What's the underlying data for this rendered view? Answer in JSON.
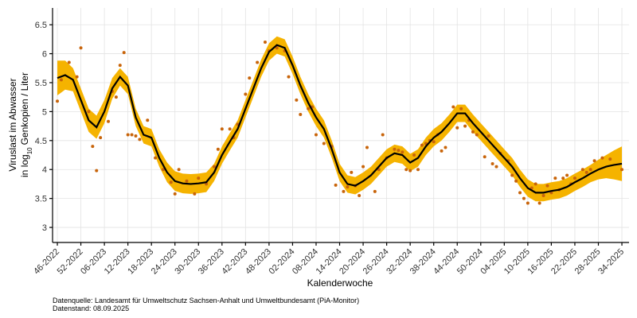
{
  "chart_data": {
    "y_label": {
      "line1": "Viruslast im Abwasser",
      "line2_prefix": "in  log",
      "line2_sub": "10",
      "line2_suffix": "Genkopien / Liter"
    },
    "x_label": "Kalenderwoche",
    "footer": [
      "Datenquelle: Landesamt für Umweltschutz Sachsen-Anhalt und Umweltbundesamt (PiA-Monitor)",
      "Datenstand: 08.09.2025"
    ],
    "xlim": [
      -1.22,
      145.82
    ],
    "ylim": [
      2.74,
      6.79
    ],
    "grid": true,
    "xticks": [
      {
        "value": 0,
        "label": "46-2022"
      },
      {
        "value": 6,
        "label": "52-2022"
      },
      {
        "value": 12,
        "label": "06-2023"
      },
      {
        "value": 18,
        "label": "12-2023"
      },
      {
        "value": 24,
        "label": "18-2023"
      },
      {
        "value": 30,
        "label": "24-2023"
      },
      {
        "value": 36,
        "label": "30-2023"
      },
      {
        "value": 42,
        "label": "36-2023"
      },
      {
        "value": 48,
        "label": "42-2023"
      },
      {
        "value": 54,
        "label": "48-2023"
      },
      {
        "value": 60,
        "label": "02-2024"
      },
      {
        "value": 66,
        "label": "08-2024"
      },
      {
        "value": 72,
        "label": "14-2024"
      },
      {
        "value": 78,
        "label": "20-2024"
      },
      {
        "value": 84,
        "label": "26-2024"
      },
      {
        "value": 90,
        "label": "32-2024"
      },
      {
        "value": 96,
        "label": "38-2024"
      },
      {
        "value": 102,
        "label": "44-2024"
      },
      {
        "value": 108,
        "label": "50-2024"
      },
      {
        "value": 114,
        "label": "04-2025"
      },
      {
        "value": 120,
        "label": "10-2025"
      },
      {
        "value": 126,
        "label": "16-2025"
      },
      {
        "value": 132,
        "label": "22-2025"
      },
      {
        "value": 138,
        "label": "28-2025"
      },
      {
        "value": 144,
        "label": "34-2025"
      }
    ],
    "yticks": [
      3,
      3.5,
      4,
      4.5,
      5,
      5.5,
      6,
      6.5
    ],
    "series": [
      {
        "type": "line",
        "color": "#000000",
        "band_color": "#f5b300",
        "x": [
          0,
          2,
          4,
          6,
          8,
          10,
          12,
          14,
          16,
          18,
          20,
          22,
          24,
          26,
          28,
          30,
          32,
          34,
          36,
          38,
          40,
          42,
          44,
          46,
          48,
          50,
          52,
          54,
          56,
          58,
          60,
          62,
          64,
          66,
          68,
          70,
          72,
          74,
          76,
          78,
          80,
          82,
          84,
          86,
          88,
          90,
          92,
          94,
          96,
          98,
          100,
          102,
          104,
          106,
          108,
          110,
          112,
          114,
          116,
          118,
          120,
          122,
          124,
          126,
          128,
          130,
          132,
          134,
          136,
          138,
          140,
          142,
          144
        ],
        "values": [
          5.58,
          5.63,
          5.55,
          5.2,
          4.85,
          4.73,
          5.0,
          5.4,
          5.6,
          5.45,
          4.9,
          4.6,
          4.55,
          4.2,
          3.95,
          3.8,
          3.76,
          3.75,
          3.76,
          3.78,
          3.95,
          4.25,
          4.48,
          4.7,
          5.05,
          5.4,
          5.75,
          6.03,
          6.15,
          6.1,
          5.8,
          5.45,
          5.15,
          4.9,
          4.7,
          4.35,
          3.95,
          3.75,
          3.72,
          3.8,
          3.9,
          4.05,
          4.2,
          4.28,
          4.25,
          4.12,
          4.2,
          4.4,
          4.55,
          4.65,
          4.8,
          4.97,
          4.97,
          4.8,
          4.65,
          4.5,
          4.35,
          4.2,
          4.05,
          3.85,
          3.68,
          3.6,
          3.6,
          3.63,
          3.65,
          3.7,
          3.78,
          3.85,
          3.93,
          4.0,
          4.05,
          4.08,
          4.1
        ],
        "lower": [
          5.28,
          5.38,
          5.35,
          5.0,
          4.65,
          4.53,
          4.8,
          5.22,
          5.45,
          5.3,
          4.75,
          4.45,
          4.4,
          4.05,
          3.78,
          3.63,
          3.59,
          3.58,
          3.59,
          3.61,
          3.8,
          4.1,
          4.33,
          4.55,
          4.9,
          5.25,
          5.6,
          5.88,
          6.0,
          5.95,
          5.65,
          5.3,
          5.0,
          4.75,
          4.55,
          4.2,
          3.8,
          3.6,
          3.57,
          3.65,
          3.75,
          3.9,
          4.05,
          4.13,
          4.1,
          3.97,
          4.05,
          4.25,
          4.4,
          4.5,
          4.65,
          4.82,
          4.82,
          4.65,
          4.5,
          4.35,
          4.2,
          4.05,
          3.9,
          3.7,
          3.53,
          3.45,
          3.45,
          3.48,
          3.5,
          3.55,
          3.63,
          3.7,
          3.78,
          3.83,
          3.85,
          3.83,
          3.8
        ],
        "upper": [
          5.88,
          5.88,
          5.75,
          5.4,
          5.05,
          4.93,
          5.2,
          5.58,
          5.75,
          5.6,
          5.05,
          4.75,
          4.7,
          4.35,
          4.12,
          3.97,
          3.93,
          3.92,
          3.93,
          3.95,
          4.1,
          4.4,
          4.63,
          4.85,
          5.2,
          5.55,
          5.9,
          6.18,
          6.3,
          6.25,
          5.95,
          5.6,
          5.3,
          5.05,
          4.85,
          4.5,
          4.1,
          3.9,
          3.87,
          3.95,
          4.05,
          4.2,
          4.35,
          4.43,
          4.4,
          4.27,
          4.35,
          4.55,
          4.7,
          4.8,
          4.95,
          5.12,
          5.12,
          4.95,
          4.8,
          4.65,
          4.5,
          4.35,
          4.2,
          4.0,
          3.83,
          3.75,
          3.75,
          3.78,
          3.8,
          3.85,
          3.93,
          4.0,
          4.08,
          4.17,
          4.25,
          4.33,
          4.4
        ]
      },
      {
        "type": "scatter",
        "color": "#c8640a",
        "x": [
          0,
          1,
          3,
          5,
          6,
          8,
          9,
          10,
          11,
          13,
          14,
          15,
          16,
          17,
          18,
          19,
          20,
          21,
          23,
          25,
          27,
          29,
          30,
          31,
          33,
          35,
          36,
          38,
          40,
          41,
          42,
          44,
          45,
          46,
          48,
          49,
          51,
          53,
          54,
          56,
          58,
          59,
          61,
          62,
          64,
          65,
          66,
          68,
          70,
          71,
          73,
          74,
          75,
          76,
          77,
          78,
          79,
          81,
          82,
          83,
          84,
          86,
          87,
          88,
          89,
          90,
          91,
          92,
          93,
          94,
          95,
          96,
          97,
          98,
          99,
          101,
          102,
          103,
          104,
          105,
          106,
          107,
          109,
          110,
          111,
          112,
          113,
          115,
          116,
          117,
          118,
          119,
          120,
          121,
          122,
          123,
          124,
          125,
          126,
          127,
          128,
          129,
          130,
          131,
          132,
          134,
          135,
          136,
          137,
          139,
          141,
          144
        ],
        "values": [
          5.18,
          5.55,
          5.85,
          5.6,
          6.1,
          5.0,
          4.4,
          3.98,
          4.55,
          4.83,
          5.35,
          5.25,
          5.8,
          6.02,
          4.6,
          4.6,
          4.58,
          4.52,
          4.85,
          4.2,
          4.0,
          3.78,
          3.58,
          4.0,
          3.8,
          3.58,
          3.85,
          3.75,
          4.05,
          4.35,
          4.7,
          4.7,
          4.55,
          4.78,
          5.3,
          5.58,
          5.85,
          6.2,
          6.05,
          6.1,
          6.05,
          5.6,
          5.2,
          4.95,
          5.05,
          5.08,
          4.6,
          4.45,
          4.4,
          3.73,
          3.62,
          3.7,
          3.95,
          3.72,
          3.55,
          4.05,
          4.38,
          3.62,
          4.0,
          4.6,
          4.2,
          4.35,
          4.33,
          4.3,
          4.0,
          3.98,
          4.25,
          4.0,
          4.42,
          4.45,
          4.5,
          4.48,
          4.6,
          4.32,
          4.38,
          5.08,
          4.72,
          5.05,
          4.75,
          4.85,
          4.65,
          4.6,
          4.22,
          4.58,
          4.1,
          4.05,
          4.28,
          4.15,
          3.9,
          3.8,
          3.6,
          3.5,
          3.42,
          3.68,
          3.75,
          3.42,
          3.55,
          3.72,
          3.6,
          3.85,
          3.65,
          3.85,
          3.9,
          3.75,
          3.85,
          4.0,
          3.95,
          4.0,
          4.15,
          4.2,
          4.18,
          4.0
        ]
      }
    ]
  }
}
